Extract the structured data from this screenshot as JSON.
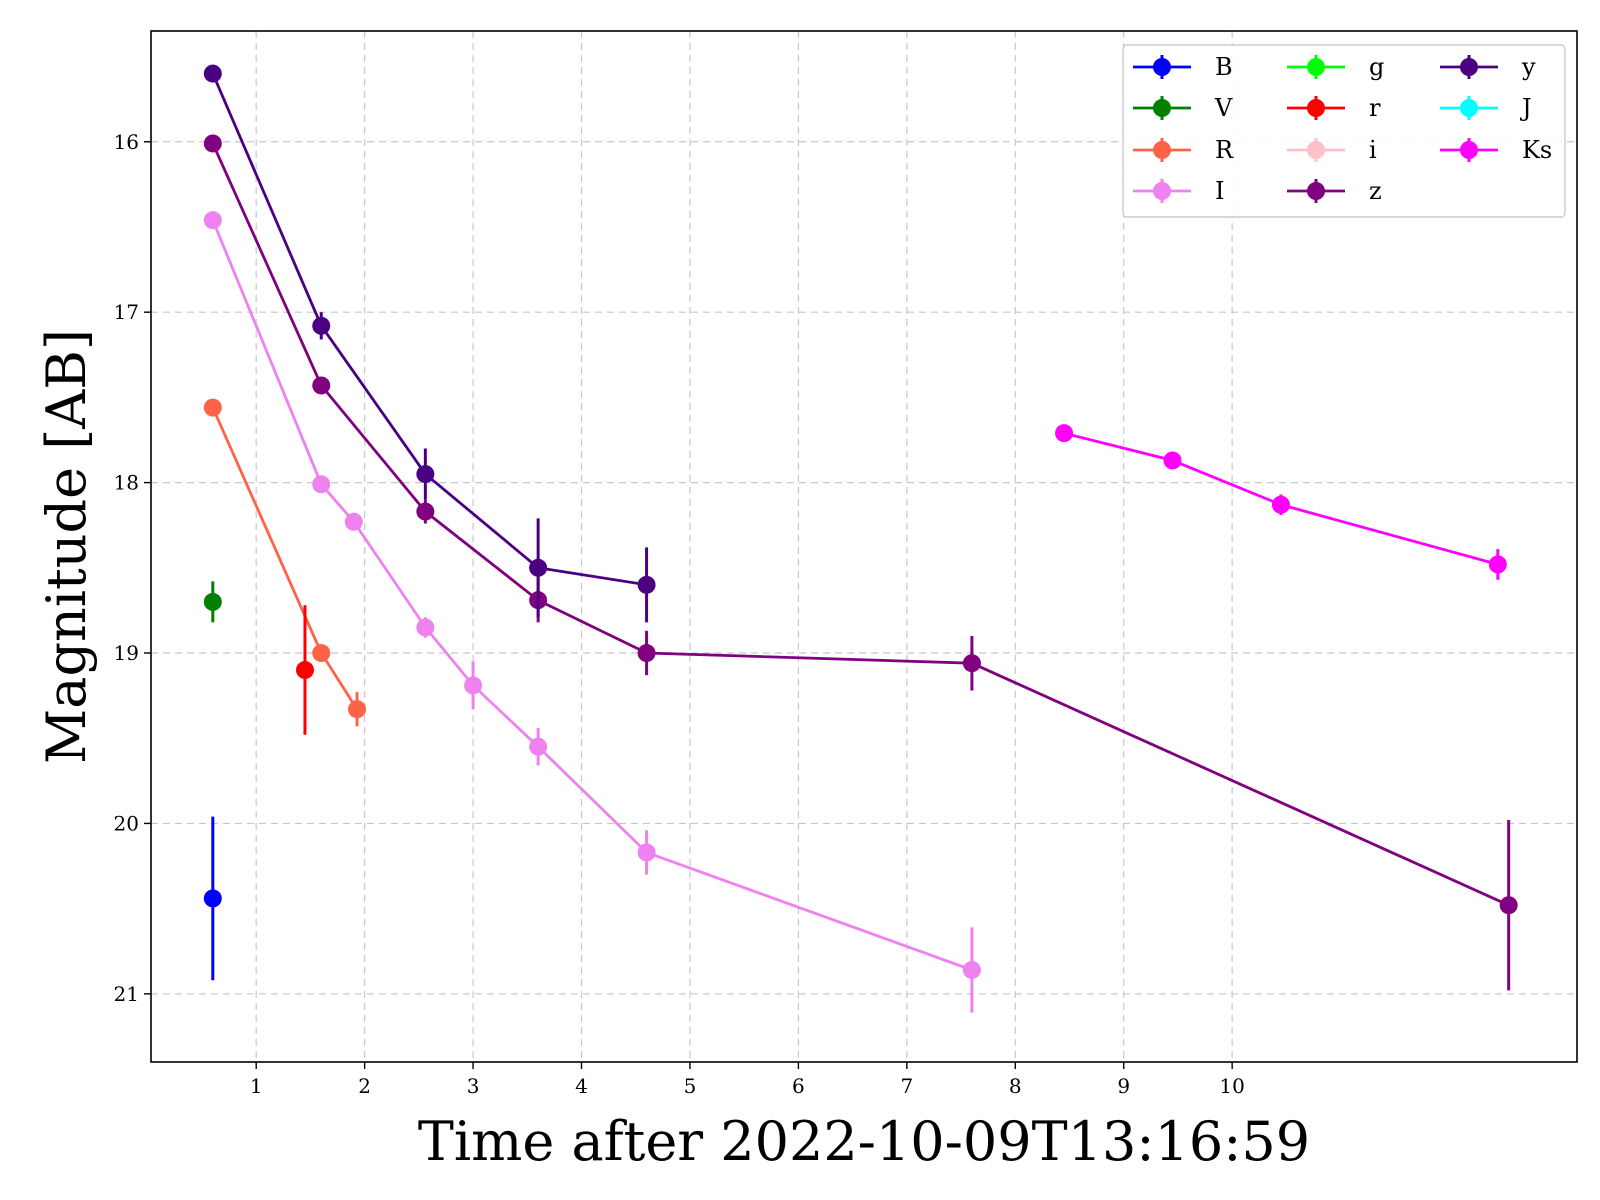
{
  "chart_data": {
    "type": "line",
    "xlabel": "Time after 2022-10-09T13:16:59",
    "ylabel": "Magnitude [AB]",
    "x_ticks": [
      1,
      2,
      3,
      4,
      5,
      6,
      7,
      8,
      9,
      10
    ],
    "y_ticks": [
      16,
      17,
      18,
      19,
      20,
      21
    ],
    "xlim": [
      0.03,
      13.18
    ],
    "ylim": [
      21.4,
      15.35
    ],
    "y_inverted": true,
    "grid": true,
    "legend_position": "top-right",
    "legend_columns": 3,
    "series": [
      {
        "name": "B",
        "color": "#0000ff",
        "points": [
          {
            "x": 0.6,
            "y": 20.44,
            "err": 0.48
          }
        ]
      },
      {
        "name": "V",
        "color": "#008000",
        "points": [
          {
            "x": 0.6,
            "y": 18.7,
            "err": 0.12
          }
        ]
      },
      {
        "name": "R",
        "color": "#ff6347",
        "points": [
          {
            "x": 0.6,
            "y": 17.56,
            "err": 0.03
          },
          {
            "x": 1.6,
            "y": 19.0,
            "err": 0.05
          },
          {
            "x": 1.93,
            "y": 19.33,
            "err": 0.1
          }
        ]
      },
      {
        "name": "I",
        "color": "#ee82ee",
        "points": [
          {
            "x": 0.6,
            "y": 16.46,
            "err": 0.03
          },
          {
            "x": 1.6,
            "y": 18.01,
            "err": 0.03
          },
          {
            "x": 1.9,
            "y": 18.23,
            "err": 0.03
          },
          {
            "x": 2.56,
            "y": 18.85,
            "err": 0.06
          },
          {
            "x": 3.0,
            "y": 19.19,
            "err": 0.14
          },
          {
            "x": 3.6,
            "y": 19.55,
            "err": 0.11
          },
          {
            "x": 4.6,
            "y": 20.17,
            "err": 0.13
          },
          {
            "x": 7.6,
            "y": 20.86,
            "err": 0.25
          }
        ]
      },
      {
        "name": "g",
        "color": "#00ff00",
        "points": []
      },
      {
        "name": "r",
        "color": "#ff0000",
        "points": [
          {
            "x": 1.45,
            "y": 19.1,
            "err": 0.38
          }
        ]
      },
      {
        "name": "i",
        "color": "#ffc0cb",
        "points": []
      },
      {
        "name": "z",
        "color": "#800080",
        "points": [
          {
            "x": 0.6,
            "y": 16.01,
            "err": 0.03
          },
          {
            "x": 1.6,
            "y": 17.43,
            "err": 0.03
          },
          {
            "x": 2.56,
            "y": 18.17,
            "err": 0.07
          },
          {
            "x": 3.6,
            "y": 18.69,
            "err": 0.13
          },
          {
            "x": 4.6,
            "y": 19.0,
            "err": 0.13
          },
          {
            "x": 7.6,
            "y": 19.06,
            "err": 0.16
          },
          {
            "x": 12.55,
            "y": 20.48,
            "err": 0.5
          }
        ]
      },
      {
        "name": "y",
        "color": "#4b0082",
        "points": [
          {
            "x": 0.6,
            "y": 15.6,
            "err": 0.03
          },
          {
            "x": 1.6,
            "y": 17.08,
            "err": 0.08
          },
          {
            "x": 2.56,
            "y": 17.95,
            "err": 0.15
          },
          {
            "x": 3.6,
            "y": 18.5,
            "err": 0.29
          },
          {
            "x": 4.6,
            "y": 18.6,
            "err": 0.22
          }
        ]
      },
      {
        "name": "J",
        "color": "#00ffff",
        "points": []
      },
      {
        "name": "Ks",
        "color": "#ff00ff",
        "points": [
          {
            "x": 8.45,
            "y": 17.71,
            "err": 0.03
          },
          {
            "x": 9.45,
            "y": 17.87,
            "err": 0.04
          },
          {
            "x": 10.45,
            "y": 18.13,
            "err": 0.06
          },
          {
            "x": 12.45,
            "y": 18.48,
            "err": 0.09
          }
        ]
      }
    ]
  }
}
